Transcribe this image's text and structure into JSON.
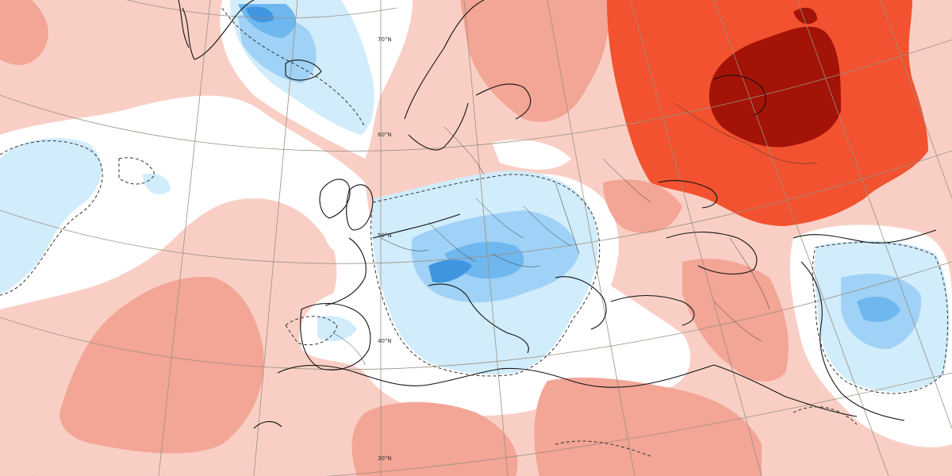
{
  "map": {
    "type": "temperature-anomaly-map",
    "region": "Europe, North Atlantic, North Africa, Middle East",
    "latitude_labels": [
      "70°N",
      "60°N",
      "50°N",
      "40°N",
      "30°N"
    ],
    "colors": {
      "background": "#f9cfc5",
      "warm_light": "#f9cfc5",
      "warm_mid": "#f3a596",
      "warm_strong": "#ee8a75",
      "hot": "#f2522f",
      "very_hot": "#a31307",
      "neutral": "#ffffff",
      "cool_light": "#d1ecfb",
      "cool_mid": "#9fd2f6",
      "cool_strong": "#6fb7ef",
      "cold": "#3f95e0"
    }
  }
}
